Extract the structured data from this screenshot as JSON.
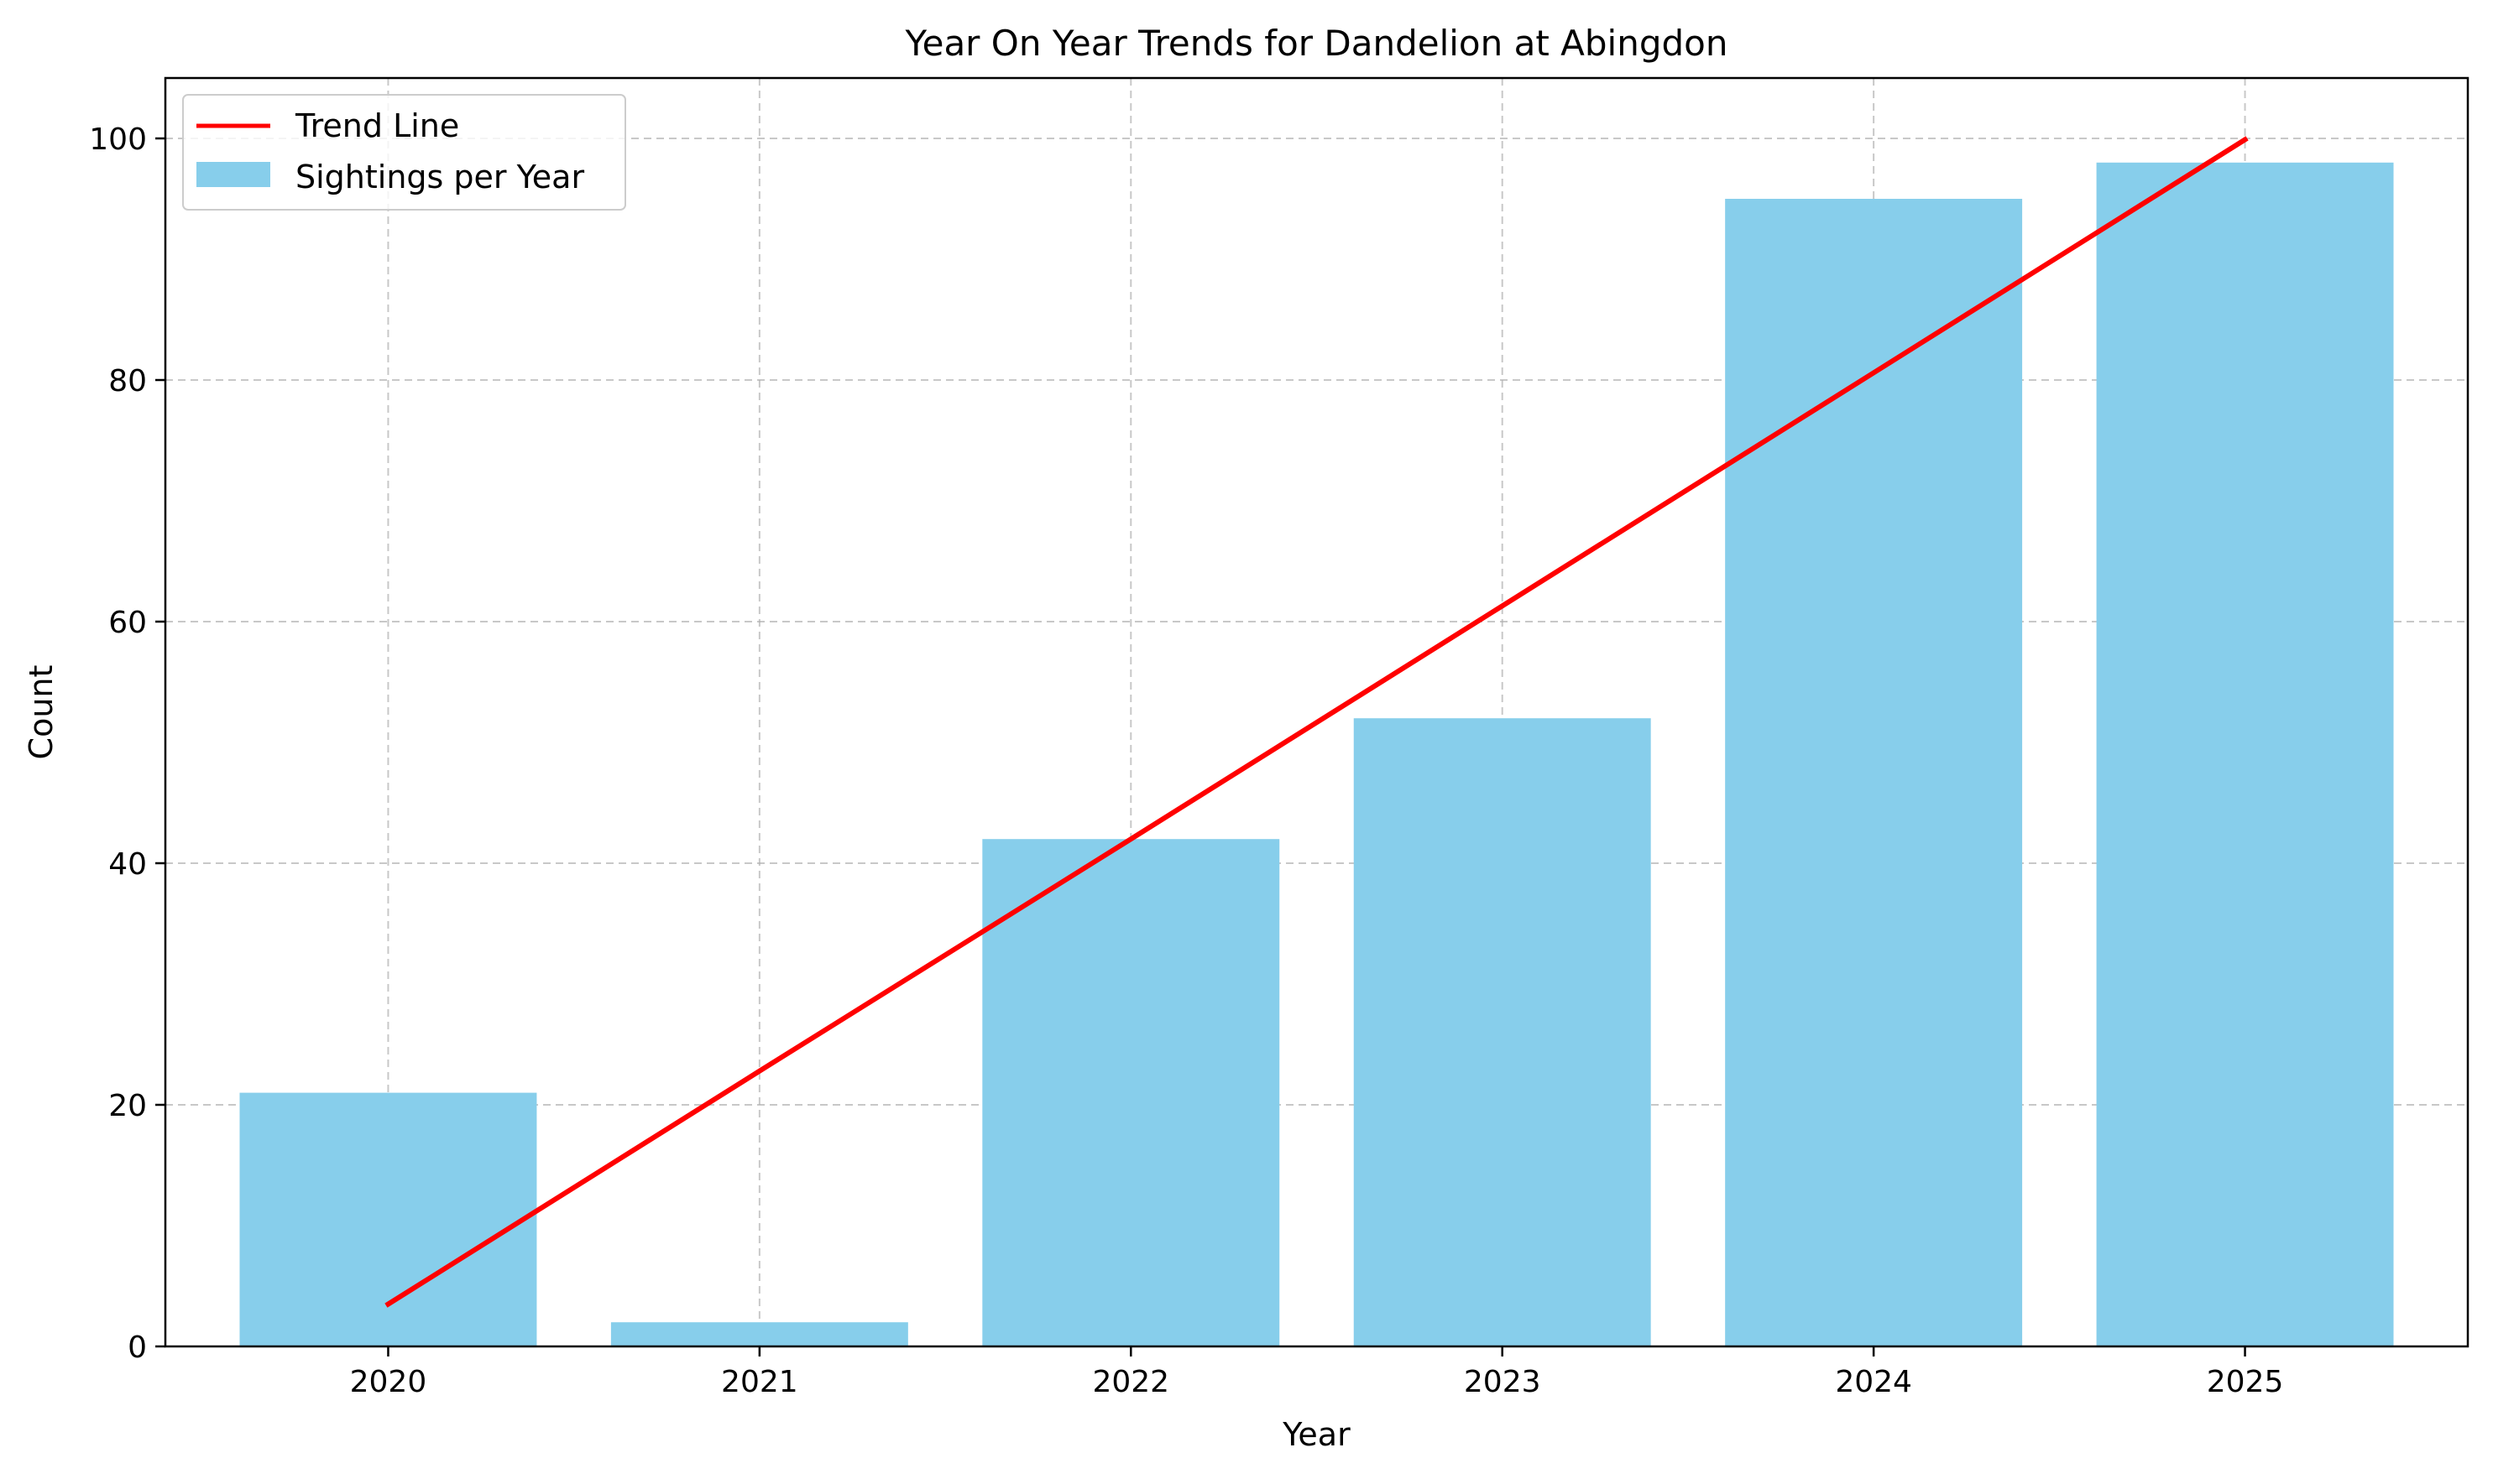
{
  "chart_data": {
    "type": "bar",
    "title": "Year On Year Trends for Dandelion at Abingdon",
    "xlabel": "Year",
    "ylabel": "Count",
    "categories": [
      "2020",
      "2021",
      "2022",
      "2023",
      "2024",
      "2025"
    ],
    "series": [
      {
        "name": "Sightings per Year",
        "kind": "bar",
        "color": "#87CEEB",
        "values": [
          21,
          2,
          42,
          52,
          95,
          98
        ]
      },
      {
        "name": "Trend Line",
        "kind": "line",
        "color": "#FF0000",
        "values": [
          3.5,
          22.8,
          42.0,
          61.3,
          80.6,
          99.9
        ]
      }
    ],
    "ylim": [
      0,
      105
    ],
    "yticks": [
      "0",
      "20",
      "40",
      "60",
      "80",
      "100"
    ],
    "grid": true,
    "legend_position": "top-left",
    "legend": [
      {
        "label": "Trend Line",
        "kind": "line",
        "color": "#FF0000"
      },
      {
        "label": "Sightings per Year",
        "kind": "bar",
        "color": "#87CEEB"
      }
    ]
  }
}
